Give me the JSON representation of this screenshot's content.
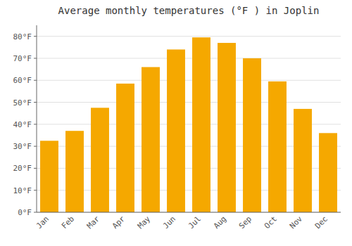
{
  "chart_data": {
    "type": "bar",
    "title": "Average monthly temperatures (°F ) in Joplin",
    "categories": [
      "Jan",
      "Feb",
      "Mar",
      "Apr",
      "May",
      "Jun",
      "Jul",
      "Aug",
      "Sep",
      "Oct",
      "Nov",
      "Dec"
    ],
    "values": [
      32.5,
      37,
      47.5,
      58.5,
      66,
      74,
      79.5,
      77,
      70,
      59.5,
      47,
      36
    ],
    "color": "#F5A800",
    "ylim": [
      0,
      85
    ],
    "yticks": [
      {
        "value": 0,
        "label": "0°F"
      },
      {
        "value": 10,
        "label": "10°F"
      },
      {
        "value": 20,
        "label": "20°F"
      },
      {
        "value": 30,
        "label": "30°F"
      },
      {
        "value": 40,
        "label": "40°F"
      },
      {
        "value": 50,
        "label": "50°F"
      },
      {
        "value": 60,
        "label": "60°F"
      },
      {
        "value": 70,
        "label": "70°F"
      },
      {
        "value": 80,
        "label": "80°F"
      }
    ],
    "grid": true
  }
}
